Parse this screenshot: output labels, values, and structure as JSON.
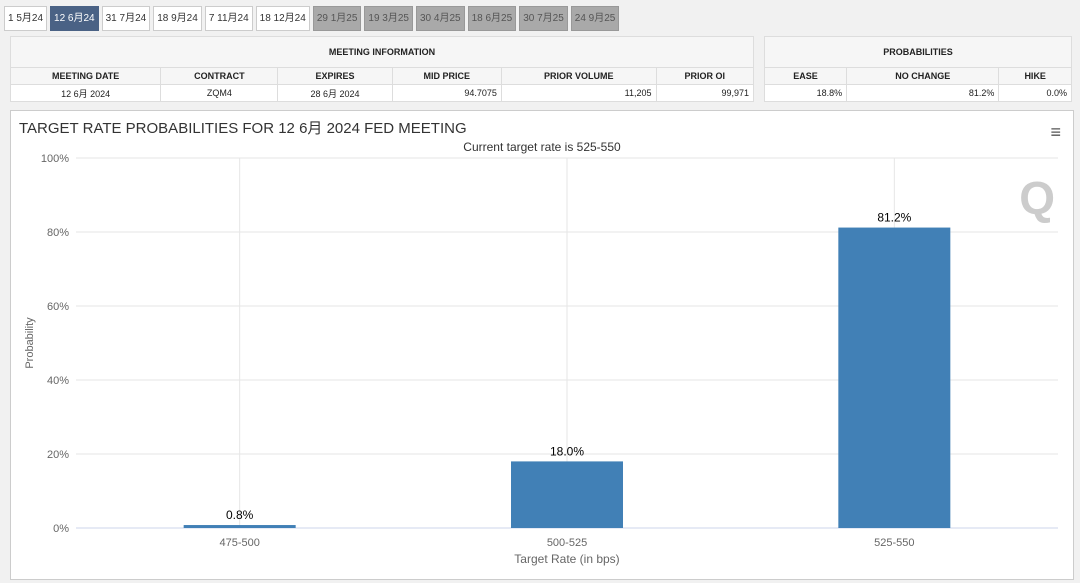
{
  "tabs": [
    {
      "label": "1 5月24",
      "state": "normal"
    },
    {
      "label": "12 6月24",
      "state": "active"
    },
    {
      "label": "31 7月24",
      "state": "normal"
    },
    {
      "label": "18 9月24",
      "state": "normal"
    },
    {
      "label": "7 11月24",
      "state": "normal"
    },
    {
      "label": "18 12月24",
      "state": "normal"
    },
    {
      "label": "29 1月25",
      "state": "future"
    },
    {
      "label": "19 3月25",
      "state": "future"
    },
    {
      "label": "30 4月25",
      "state": "future"
    },
    {
      "label": "18 6月25",
      "state": "future"
    },
    {
      "label": "30 7月25",
      "state": "future"
    },
    {
      "label": "24 9月25",
      "state": "future"
    }
  ],
  "meeting_info": {
    "caption": "MEETING INFORMATION",
    "headers": [
      "MEETING DATE",
      "CONTRACT",
      "EXPIRES",
      "MID PRICE",
      "PRIOR VOLUME",
      "PRIOR OI"
    ],
    "values": [
      "12 6月 2024",
      "ZQM4",
      "28 6月 2024",
      "94.7075",
      "11,205",
      "99,971"
    ]
  },
  "probabilities": {
    "caption": "PROBABILITIES",
    "headers": [
      "EASE",
      "NO CHANGE",
      "HIKE"
    ],
    "values": [
      "18.8%",
      "81.2%",
      "0.0%"
    ]
  },
  "chart": {
    "menu_icon": "hamburger-menu-icon",
    "logo_text": "Q"
  },
  "chart_data": {
    "type": "bar",
    "title": "TARGET RATE PROBABILITIES FOR 12 6月 2024 FED MEETING",
    "subtitle": "Current target rate is 525-550",
    "xlabel": "Target Rate (in bps)",
    "ylabel": "Probability",
    "categories": [
      "475-500",
      "500-525",
      "525-550"
    ],
    "values": [
      0.8,
      18.0,
      81.2
    ],
    "data_labels": [
      "0.8%",
      "18.0%",
      "81.2%"
    ],
    "ylim": [
      0,
      100
    ],
    "yticks": [
      "0%",
      "20%",
      "40%",
      "60%",
      "80%",
      "100%"
    ],
    "bar_color": "#4180b6",
    "grid": true
  }
}
